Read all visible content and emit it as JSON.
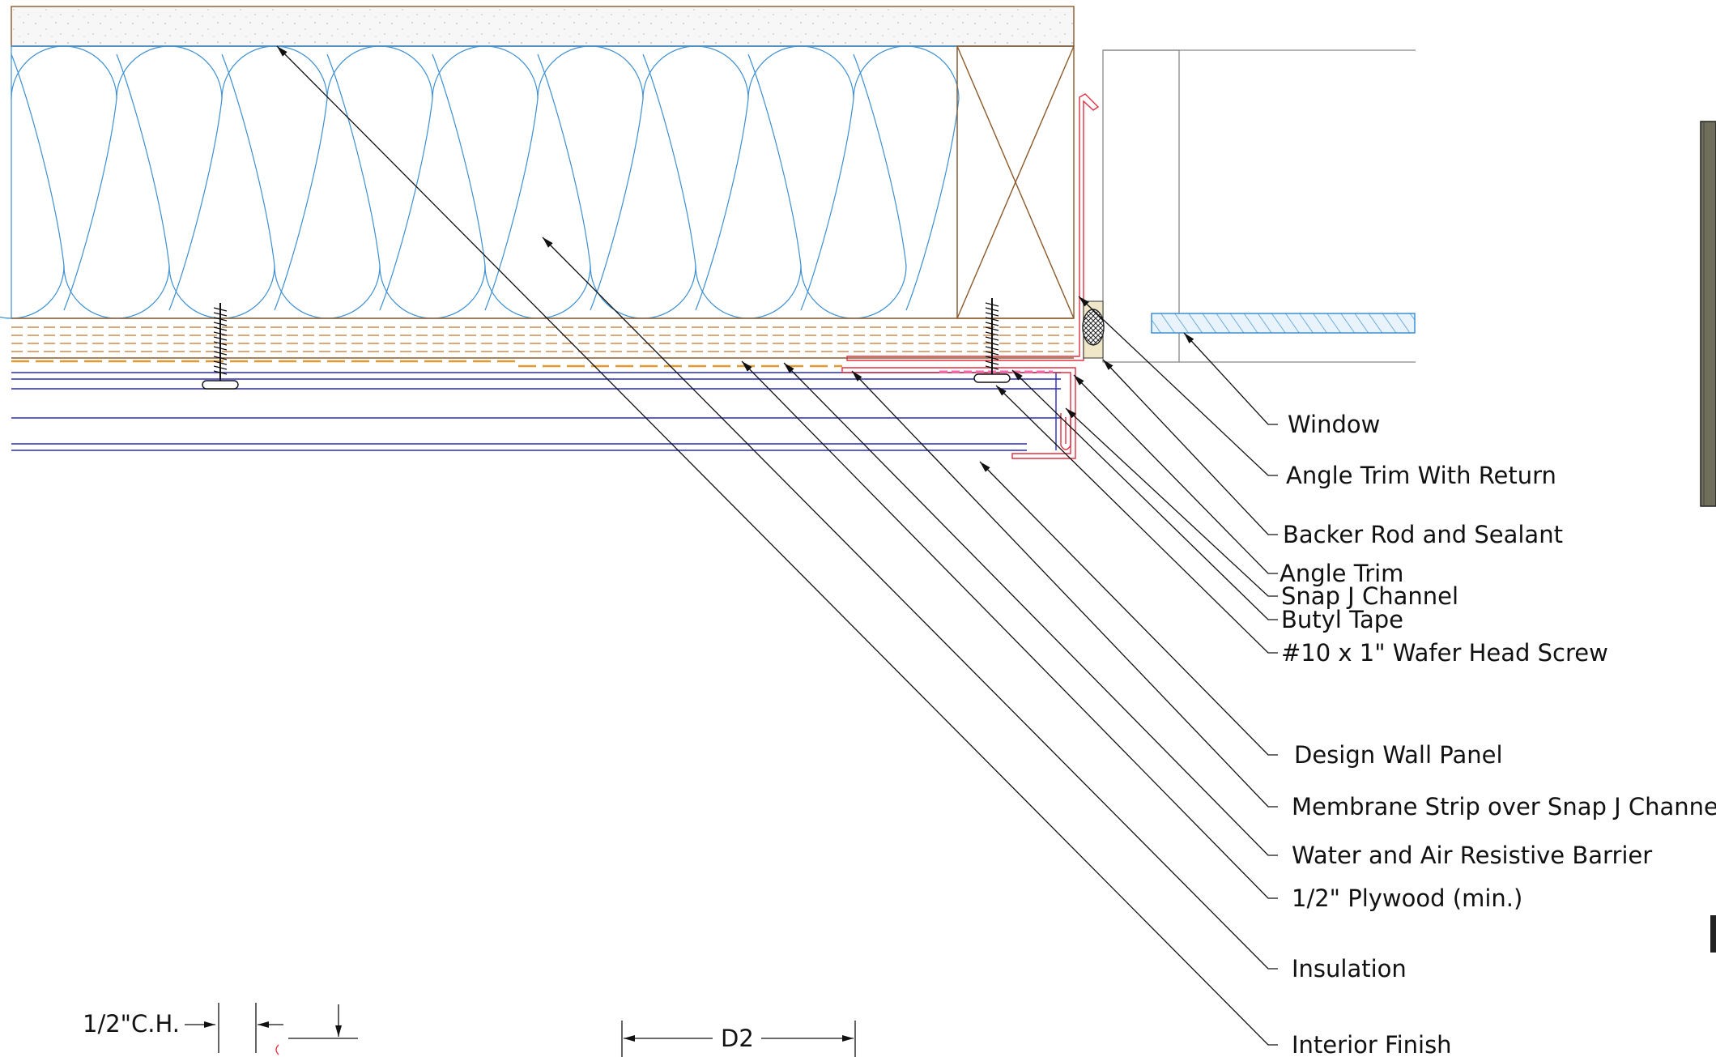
{
  "callouts": {
    "window": "Window",
    "angle_trim_return": "Angle Trim With Return",
    "backer_rod": "Backer Rod and Sealant",
    "angle_trim": "Angle Trim",
    "snap_j": "Snap J Channel",
    "butyl": "Butyl Tape",
    "screw": "#10 x 1\" Wafer Head Screw",
    "panel": "Design Wall Panel",
    "membrane": "Membrane Strip over Snap J Channel",
    "barrier": "Water and Air Resistive Barrier",
    "plywood": "1/2\" Plywood (min.)",
    "insulation": "Insulation",
    "interior": "Interior Finish"
  },
  "dimensions": {
    "ch": "1/2\"C.H.",
    "d2": "D2"
  },
  "colors": {
    "insulation": "#3d8fd1",
    "framing": "#8b5a2b",
    "sheathing": "#c8732a",
    "panel": "#2a2ab8",
    "trim": "#e03040",
    "sealant": "#333333",
    "window_glass": "#3d8fd1",
    "drywall_fill": "#f3f3f3"
  }
}
